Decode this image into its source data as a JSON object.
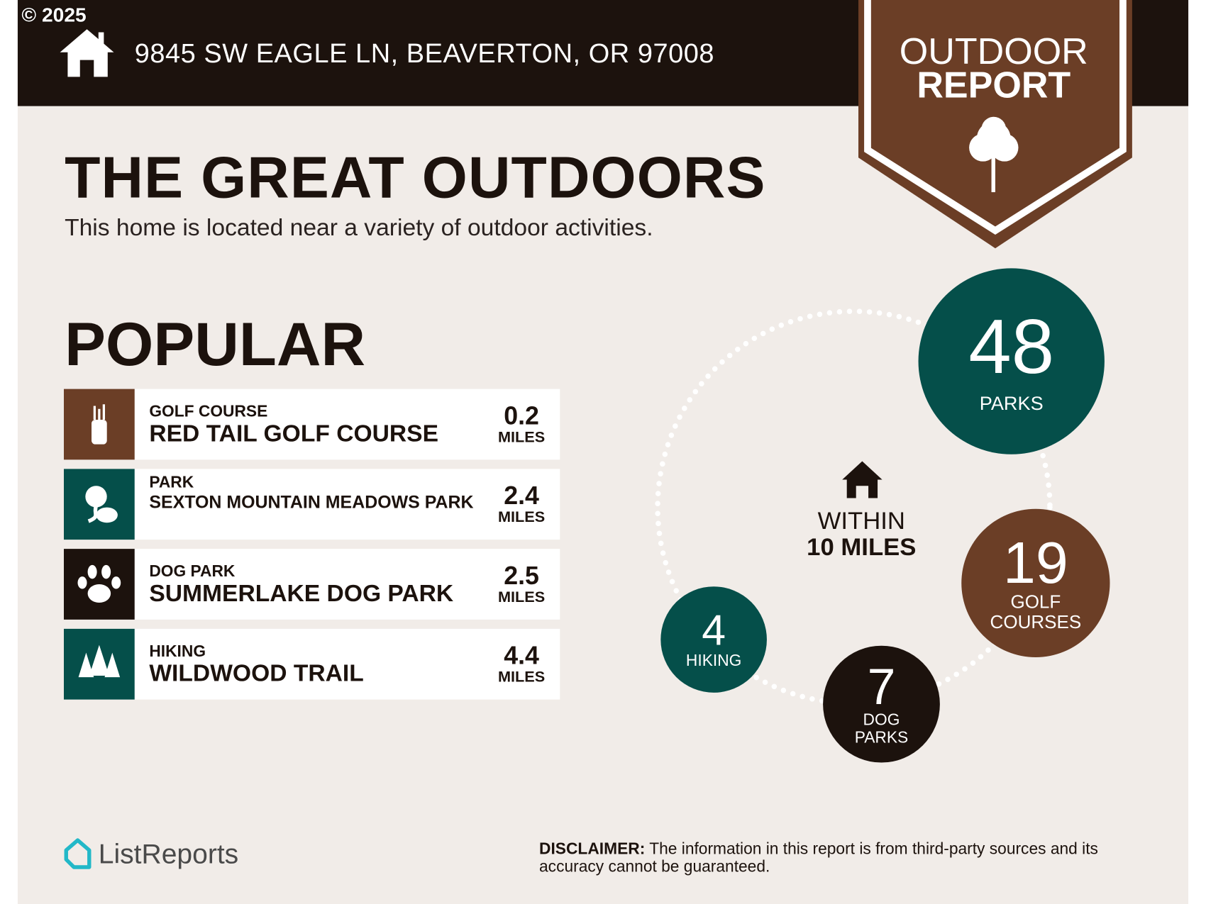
{
  "copyright": "© 2025",
  "address": "9845 SW EAGLE LN, BEAVERTON, OR 97008",
  "badge": {
    "line1": "OUTDOOR",
    "line2": "REPORT"
  },
  "title": "THE GREAT OUTDOORS",
  "subtitle": "This home is located near a variety of outdoor activities.",
  "popular": {
    "heading": "POPULAR",
    "items": [
      {
        "category": "GOLF COURSE",
        "name": "RED TAIL GOLF COURSE",
        "distance": "0.2",
        "unit": "MILES",
        "icon": "golf-bag-icon",
        "color": "#6b3e26"
      },
      {
        "category": "PARK",
        "name": "SEXTON MOUNTAIN MEADOWS PARK",
        "distance": "2.4",
        "unit": "MILES",
        "icon": "park-icon",
        "color": "#054f4a"
      },
      {
        "category": "DOG PARK",
        "name": "SUMMERLAKE DOG PARK",
        "distance": "2.5",
        "unit": "MILES",
        "icon": "paw-icon",
        "color": "#1c120d"
      },
      {
        "category": "HIKING",
        "name": "WILDWOOD TRAIL",
        "distance": "4.4",
        "unit": "MILES",
        "icon": "pine-trees-icon",
        "color": "#054f4a"
      }
    ]
  },
  "summary": {
    "within1": "WITHIN",
    "within2": "10 MILES",
    "parks": {
      "count": "48",
      "label": "PARKS"
    },
    "golf": {
      "count": "19",
      "label1": "GOLF",
      "label2": "COURSES"
    },
    "dog": {
      "count": "7",
      "label1": "DOG",
      "label2": "PARKS"
    },
    "hiking": {
      "count": "4",
      "label": "HIKING"
    }
  },
  "footer": {
    "logo": "ListReports",
    "disclaimer_label": "DISCLAIMER:",
    "disclaimer": " The information in this report is from third-party sources and its accuracy cannot be guaranteed."
  }
}
